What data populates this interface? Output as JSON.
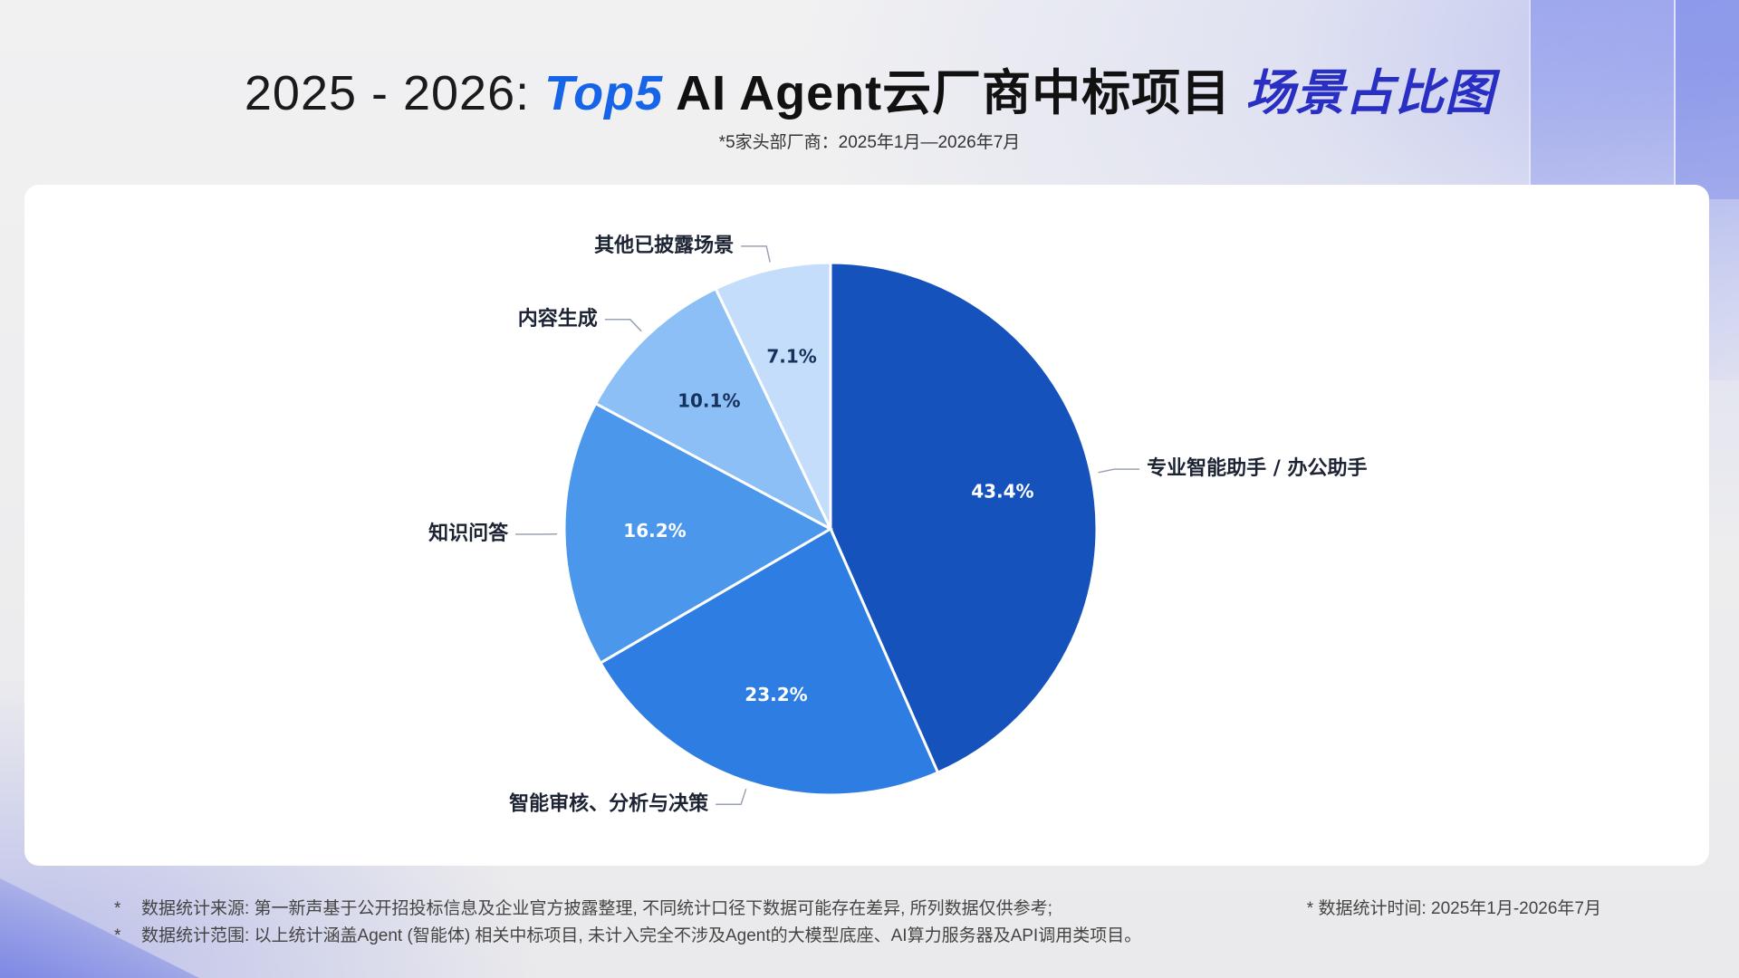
{
  "title": {
    "part1": "2025 - 2026:",
    "part2": "Top5",
    "part3": "AI Agent云厂商中标项目",
    "part4": "场景占比图"
  },
  "subtitle": "*5家头部厂商：2025年1月—2026年7月",
  "chart_data": {
    "type": "pie",
    "slices": [
      {
        "label": "专业智能助手 / 办公助手",
        "value": 43.4,
        "value_label": "43.4%",
        "color": "#1652bb",
        "text_color": "#ffffff"
      },
      {
        "label": "智能审核、分析与决策",
        "value": 23.2,
        "value_label": "23.2%",
        "color": "#2e7de3",
        "text_color": "#ffffff"
      },
      {
        "label": "知识问答",
        "value": 16.2,
        "value_label": "16.2%",
        "color": "#4b97ec",
        "text_color": "#ffffff"
      },
      {
        "label": "内容生成",
        "value": 10.1,
        "value_label": "10.1%",
        "color": "#8bbff5",
        "text_color": "#17305c"
      },
      {
        "label": "其他已披露场景",
        "value": 7.1,
        "value_label": "7.1%",
        "color": "#c3ddfa",
        "text_color": "#17305c"
      }
    ]
  },
  "footnotes": [
    {
      "star": "*",
      "text": "数据统计来源: 第一新声基于公开招投标信息及企业官方披露整理, 不同统计口径下数据可能存在差异, 所列数据仅供参考;"
    },
    {
      "star": "*",
      "text": "数据统计范围: 以上统计涵盖Agent (智能体) 相关中标项目, 未计入完全不涉及Agent的大模型底座、AI算力服务器及API调用类项目。"
    }
  ],
  "footnote_right": "* 数据统计时间: 2025年1月-2026年7月"
}
